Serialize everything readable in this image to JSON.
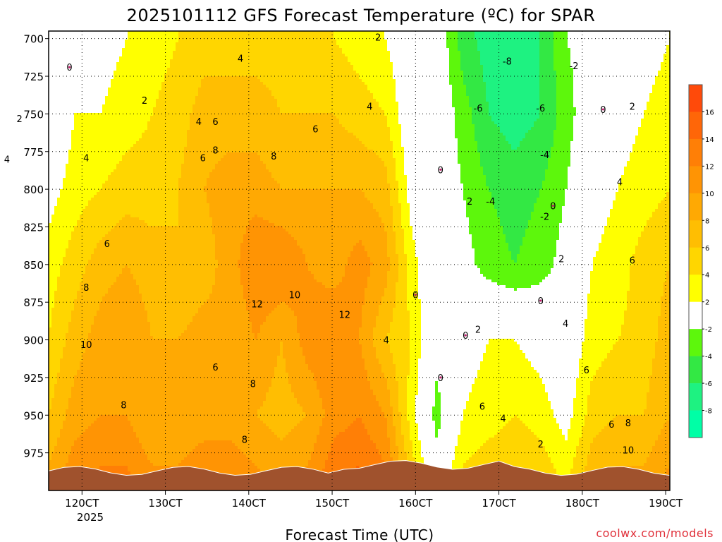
{
  "chart_data": {
    "type": "heatmap",
    "title": "2025101112 GFS Forecast Temperature (ºC) for SPAR",
    "xlabel": "Forecast Time (UTC)",
    "ylabel": "",
    "credit": "coolwx.com/models",
    "x_ticks": [
      "120CT",
      "130CT",
      "140CT",
      "150CT",
      "160CT",
      "170CT",
      "180CT",
      "190CT"
    ],
    "x_year": "2025",
    "y_ticks": [
      700,
      725,
      750,
      775,
      800,
      825,
      850,
      875,
      900,
      925,
      950,
      975
    ],
    "ylim": [
      1000,
      695
    ],
    "grid": true,
    "colorbar": {
      "tick_labels": [
        "16",
        "14",
        "12",
        "10",
        "8",
        "6",
        "4",
        "2",
        "-2",
        "-4",
        "-6",
        "-8"
      ],
      "bins": [
        {
          "color": "#ff4a0a"
        },
        {
          "color": "#ff6608"
        },
        {
          "color": "#ff7f06"
        },
        {
          "color": "#ff9404"
        },
        {
          "color": "#ffa903"
        },
        {
          "color": "#ffbe02"
        },
        {
          "color": "#ffd600"
        },
        {
          "color": "#ffff00"
        },
        {
          "color": "#ffffff"
        },
        {
          "color": "#5df70c"
        },
        {
          "color": "#33e844"
        },
        {
          "color": "#1ef281"
        },
        {
          "color": "#00ffa6"
        }
      ]
    },
    "colors": {
      "ground": "#a0522d",
      "zero_contour": "#c0186a",
      "contour": "#000000"
    },
    "x_range_days": [
      11.6,
      19.05
    ],
    "series": [
      {
        "name": "c950",
        "values": [
          6,
          9,
          10,
          10,
          8,
          8,
          9,
          9,
          8,
          7,
          8,
          11,
          12,
          10,
          3,
          -3,
          2,
          3,
          4,
          3,
          1,
          5,
          6,
          6,
          8
        ]
      },
      {
        "name": "c900",
        "values": [
          4,
          7,
          9,
          10,
          8,
          8,
          9,
          8,
          10,
          8,
          11,
          12,
          10,
          6,
          4,
          -1,
          1,
          2,
          2,
          1,
          0,
          3,
          4,
          5,
          7
        ]
      },
      {
        "name": "c850",
        "values": [
          3,
          5,
          7,
          8,
          7,
          6,
          7,
          9,
          12,
          12,
          10,
          9,
          11,
          9,
          3,
          -1,
          -1,
          -3,
          -4,
          -3,
          -1,
          2,
          3,
          5,
          6
        ]
      },
      {
        "name": "c800",
        "values": [
          1,
          3,
          4,
          5,
          5,
          6,
          8,
          9,
          9,
          8,
          8,
          8,
          8,
          7,
          1,
          0,
          -2,
          -4,
          -5,
          -4,
          -2,
          1,
          2,
          3,
          4
        ]
      },
      {
        "name": "c750",
        "values": [
          -1,
          2,
          2,
          3,
          4,
          5,
          7,
          7,
          7,
          6,
          6,
          6,
          5,
          4,
          0,
          0,
          -3,
          -6,
          -7,
          -6,
          -3,
          0,
          1,
          2,
          3
        ]
      },
      {
        "name": "c700",
        "values": [
          -1,
          0,
          1,
          2,
          3,
          4,
          5,
          5,
          5,
          5,
          4,
          4,
          3,
          2,
          0,
          0,
          -5,
          -7,
          -8,
          -6,
          -2,
          -1,
          0,
          1,
          2
        ]
      }
    ],
    "contour_labels": [
      {
        "text": "0",
        "x": 11.85,
        "y": 719
      },
      {
        "text": "2",
        "x": 12.75,
        "y": 741
      },
      {
        "text": "2",
        "x": 11.25,
        "y": 753
      },
      {
        "text": "4",
        "x": 11.1,
        "y": 780
      },
      {
        "text": "4",
        "x": 12.05,
        "y": 779
      },
      {
        "text": "4",
        "x": 13.4,
        "y": 755
      },
      {
        "text": "6",
        "x": 13.6,
        "y": 755
      },
      {
        "text": "4",
        "x": 13.9,
        "y": 713
      },
      {
        "text": "6",
        "x": 13.45,
        "y": 779
      },
      {
        "text": "8",
        "x": 13.6,
        "y": 774
      },
      {
        "text": "8",
        "x": 14.3,
        "y": 778
      },
      {
        "text": "6",
        "x": 14.8,
        "y": 760
      },
      {
        "text": "4",
        "x": 15.45,
        "y": 745
      },
      {
        "text": "2",
        "x": 15.55,
        "y": 699
      },
      {
        "text": "6",
        "x": 12.3,
        "y": 836
      },
      {
        "text": "8",
        "x": 12.05,
        "y": 865
      },
      {
        "text": "10",
        "x": 12.05,
        "y": 903
      },
      {
        "text": "8",
        "x": 12.5,
        "y": 943
      },
      {
        "text": "12",
        "x": 14.1,
        "y": 876
      },
      {
        "text": "10",
        "x": 14.55,
        "y": 870
      },
      {
        "text": "12",
        "x": 15.15,
        "y": 883
      },
      {
        "text": "8",
        "x": 14.05,
        "y": 929
      },
      {
        "text": "6",
        "x": 13.6,
        "y": 918
      },
      {
        "text": "8",
        "x": 13.95,
        "y": 966
      },
      {
        "text": "4",
        "x": 15.65,
        "y": 900
      },
      {
        "text": "0",
        "x": 16.3,
        "y": 787
      },
      {
        "text": "0",
        "x": 16.0,
        "y": 870
      },
      {
        "text": "0",
        "x": 16.3,
        "y": 925
      },
      {
        "text": "0",
        "x": 16.6,
        "y": 897
      },
      {
        "text": "2",
        "x": 16.75,
        "y": 893
      },
      {
        "text": "2",
        "x": 16.65,
        "y": 808
      },
      {
        "text": "-4",
        "x": 16.9,
        "y": 808
      },
      {
        "text": "-8",
        "x": 17.1,
        "y": 715
      },
      {
        "text": "-6",
        "x": 16.75,
        "y": 746
      },
      {
        "text": "-6",
        "x": 17.5,
        "y": 746
      },
      {
        "text": "-4",
        "x": 17.55,
        "y": 777
      },
      {
        "text": "-2",
        "x": 17.55,
        "y": 818
      },
      {
        "text": "-2",
        "x": 17.9,
        "y": 718
      },
      {
        "text": "0",
        "x": 18.25,
        "y": 747
      },
      {
        "text": "0",
        "x": 17.65,
        "y": 811
      },
      {
        "text": "2",
        "x": 17.75,
        "y": 846
      },
      {
        "text": "0",
        "x": 17.5,
        "y": 874
      },
      {
        "text": "2",
        "x": 18.6,
        "y": 745
      },
      {
        "text": "4",
        "x": 18.45,
        "y": 795
      },
      {
        "text": "6",
        "x": 18.6,
        "y": 847
      },
      {
        "text": "4",
        "x": 17.8,
        "y": 889
      },
      {
        "text": "6",
        "x": 18.05,
        "y": 920
      },
      {
        "text": "6",
        "x": 16.8,
        "y": 944
      },
      {
        "text": "4",
        "x": 17.05,
        "y": 952
      },
      {
        "text": "6",
        "x": 18.35,
        "y": 956
      },
      {
        "text": "8",
        "x": 18.55,
        "y": 955
      },
      {
        "text": "10",
        "x": 18.55,
        "y": 973
      },
      {
        "text": "2",
        "x": 17.5,
        "y": 969
      }
    ]
  }
}
